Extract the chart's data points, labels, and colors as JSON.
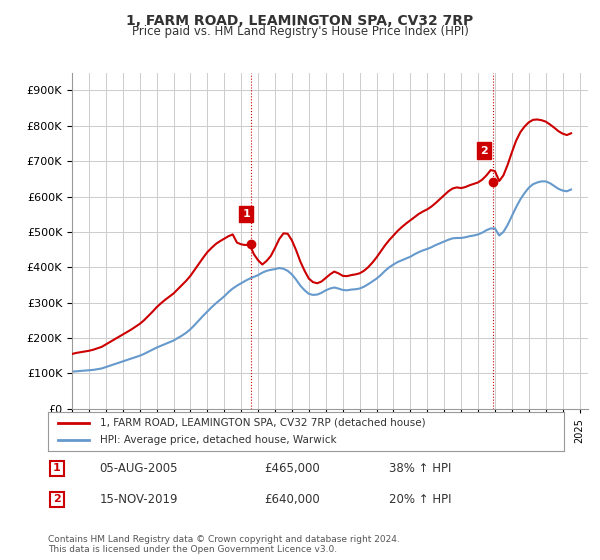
{
  "title": "1, FARM ROAD, LEAMINGTON SPA, CV32 7RP",
  "subtitle": "Price paid vs. HM Land Registry's House Price Index (HPI)",
  "ylabel_ticks": [
    "£0",
    "£100K",
    "£200K",
    "£300K",
    "£400K",
    "£500K",
    "£600K",
    "£700K",
    "£800K",
    "£900K"
  ],
  "ytick_values": [
    0,
    100000,
    200000,
    300000,
    400000,
    500000,
    600000,
    700000,
    800000,
    900000
  ],
  "ylim": [
    0,
    950000
  ],
  "legend_line1": "1, FARM ROAD, LEAMINGTON SPA, CV32 7RP (detached house)",
  "legend_line2": "HPI: Average price, detached house, Warwick",
  "line1_color": "#cc0000",
  "line2_color": "#6699cc",
  "annotation1_label": "1",
  "annotation1_date": "05-AUG-2005",
  "annotation1_price": "£465,000",
  "annotation1_hpi": "38% ↑ HPI",
  "annotation2_label": "2",
  "annotation2_date": "15-NOV-2019",
  "annotation2_price": "£640,000",
  "annotation2_hpi": "20% ↑ HPI",
  "footnote": "Contains HM Land Registry data © Crown copyright and database right 2024.\nThis data is licensed under the Open Government Licence v3.0.",
  "background_color": "#ffffff",
  "grid_color": "#cccccc",
  "sale1_x": 2005.6,
  "sale1_y": 465000,
  "sale2_x": 2019.87,
  "sale2_y": 640000,
  "vline1_x": 2005.6,
  "vline2_x": 2019.87,
  "xmin": 1995,
  "xmax": 2025.5,
  "hpi_line_data": {
    "x": [
      1995,
      1995.25,
      1995.5,
      1995.75,
      1996,
      1996.25,
      1996.5,
      1996.75,
      1997,
      1997.25,
      1997.5,
      1997.75,
      1998,
      1998.25,
      1998.5,
      1998.75,
      1999,
      1999.25,
      1999.5,
      1999.75,
      2000,
      2000.25,
      2000.5,
      2000.75,
      2001,
      2001.25,
      2001.5,
      2001.75,
      2002,
      2002.25,
      2002.5,
      2002.75,
      2003,
      2003.25,
      2003.5,
      2003.75,
      2004,
      2004.25,
      2004.5,
      2004.75,
      2005,
      2005.25,
      2005.5,
      2005.75,
      2006,
      2006.25,
      2006.5,
      2006.75,
      2007,
      2007.25,
      2007.5,
      2007.75,
      2008,
      2008.25,
      2008.5,
      2008.75,
      2009,
      2009.25,
      2009.5,
      2009.75,
      2010,
      2010.25,
      2010.5,
      2010.75,
      2011,
      2011.25,
      2011.5,
      2011.75,
      2012,
      2012.25,
      2012.5,
      2012.75,
      2013,
      2013.25,
      2013.5,
      2013.75,
      2014,
      2014.25,
      2014.5,
      2014.75,
      2015,
      2015.25,
      2015.5,
      2015.75,
      2016,
      2016.25,
      2016.5,
      2016.75,
      2017,
      2017.25,
      2017.5,
      2017.75,
      2018,
      2018.25,
      2018.5,
      2018.75,
      2019,
      2019.25,
      2019.5,
      2019.75,
      2020,
      2020.25,
      2020.5,
      2020.75,
      2021,
      2021.25,
      2021.5,
      2021.75,
      2022,
      2022.25,
      2022.5,
      2022.75,
      2023,
      2023.25,
      2023.5,
      2023.75,
      2024,
      2024.25,
      2024.5
    ],
    "y": [
      105000,
      106000,
      107000,
      108000,
      109000,
      110000,
      112000,
      114000,
      118000,
      122000,
      126000,
      130000,
      134000,
      138000,
      142000,
      146000,
      150000,
      155000,
      161000,
      167000,
      173000,
      178000,
      183000,
      188000,
      193000,
      200000,
      207000,
      215000,
      225000,
      237000,
      250000,
      263000,
      275000,
      287000,
      298000,
      308000,
      318000,
      330000,
      340000,
      348000,
      355000,
      362000,
      368000,
      373000,
      378000,
      385000,
      390000,
      393000,
      395000,
      398000,
      396000,
      390000,
      380000,
      365000,
      348000,
      335000,
      325000,
      322000,
      323000,
      328000,
      335000,
      340000,
      343000,
      340000,
      336000,
      335000,
      337000,
      338000,
      340000,
      345000,
      352000,
      360000,
      368000,
      378000,
      390000,
      400000,
      408000,
      415000,
      420000,
      425000,
      430000,
      437000,
      443000,
      448000,
      452000,
      457000,
      463000,
      468000,
      473000,
      478000,
      482000,
      483000,
      483000,
      485000,
      488000,
      490000,
      493000,
      498000,
      505000,
      510000,
      510000,
      490000,
      500000,
      520000,
      545000,
      570000,
      592000,
      610000,
      625000,
      635000,
      640000,
      643000,
      643000,
      638000,
      630000,
      622000,
      617000,
      615000,
      620000
    ]
  },
  "price_line_data": {
    "x": [
      1995,
      1995.25,
      1995.5,
      1995.75,
      1996,
      1996.25,
      1996.5,
      1996.75,
      1997,
      1997.25,
      1997.5,
      1997.75,
      1998,
      1998.25,
      1998.5,
      1998.75,
      1999,
      1999.25,
      1999.5,
      1999.75,
      2000,
      2000.25,
      2000.5,
      2000.75,
      2001,
      2001.25,
      2001.5,
      2001.75,
      2002,
      2002.25,
      2002.5,
      2002.75,
      2003,
      2003.25,
      2003.5,
      2003.75,
      2004,
      2004.25,
      2004.5,
      2004.75,
      2005,
      2005.25,
      2005.5,
      2005.75,
      2006,
      2006.25,
      2006.5,
      2006.75,
      2007,
      2007.25,
      2007.5,
      2007.75,
      2008,
      2008.25,
      2008.5,
      2008.75,
      2009,
      2009.25,
      2009.5,
      2009.75,
      2010,
      2010.25,
      2010.5,
      2010.75,
      2011,
      2011.25,
      2011.5,
      2011.75,
      2012,
      2012.25,
      2012.5,
      2012.75,
      2013,
      2013.25,
      2013.5,
      2013.75,
      2014,
      2014.25,
      2014.5,
      2014.75,
      2015,
      2015.25,
      2015.5,
      2015.75,
      2016,
      2016.25,
      2016.5,
      2016.75,
      2017,
      2017.25,
      2017.5,
      2017.75,
      2018,
      2018.25,
      2018.5,
      2018.75,
      2019,
      2019.25,
      2019.5,
      2019.75,
      2020,
      2020.25,
      2020.5,
      2020.75,
      2021,
      2021.25,
      2021.5,
      2021.75,
      2022,
      2022.25,
      2022.5,
      2022.75,
      2023,
      2023.25,
      2023.5,
      2023.75,
      2024,
      2024.25,
      2024.5
    ],
    "y": [
      155000,
      158000,
      160000,
      162000,
      164000,
      167000,
      171000,
      175000,
      182000,
      189000,
      196000,
      203000,
      210000,
      217000,
      224000,
      232000,
      240000,
      250000,
      262000,
      274000,
      287000,
      298000,
      308000,
      317000,
      326000,
      338000,
      350000,
      362000,
      376000,
      393000,
      410000,
      427000,
      443000,
      455000,
      466000,
      474000,
      481000,
      488000,
      493000,
      470000,
      465000,
      463000,
      465000,
      437000,
      420000,
      408000,
      418000,
      432000,
      455000,
      480000,
      496000,
      495000,
      476000,
      448000,
      416000,
      390000,
      368000,
      358000,
      355000,
      360000,
      370000,
      380000,
      388000,
      383000,
      376000,
      375000,
      378000,
      380000,
      383000,
      390000,
      400000,
      413000,
      428000,
      445000,
      462000,
      477000,
      490000,
      503000,
      514000,
      524000,
      533000,
      542000,
      551000,
      558000,
      564000,
      572000,
      582000,
      593000,
      604000,
      615000,
      623000,
      626000,
      624000,
      627000,
      632000,
      636000,
      640000,
      648000,
      660000,
      675000,
      672000,
      644000,
      660000,
      690000,
      725000,
      758000,
      782000,
      798000,
      810000,
      817000,
      818000,
      816000,
      812000,
      804000,
      795000,
      785000,
      778000,
      774000,
      779000
    ]
  }
}
